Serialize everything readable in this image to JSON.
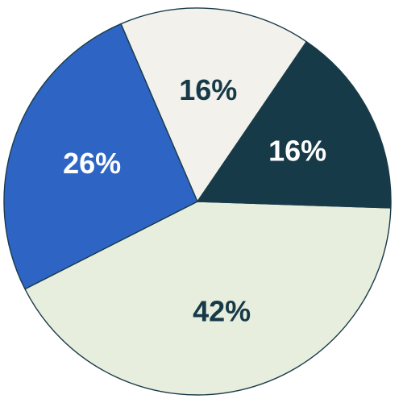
{
  "chart_data": {
    "type": "pie",
    "slices": [
      {
        "label": "42%",
        "value": 42,
        "color": "#e8eedd",
        "label_color": "#173a48"
      },
      {
        "label": "26%",
        "value": 26,
        "color": "#2e65c4",
        "label_color": "#ffffff"
      },
      {
        "label": "16%",
        "value": 16,
        "color": "#f2f1ec",
        "label_color": "#173a48"
      },
      {
        "label": "16%",
        "value": 16,
        "color": "#173a48",
        "label_color": "#ffffff"
      }
    ],
    "title": "",
    "legend": "none"
  }
}
